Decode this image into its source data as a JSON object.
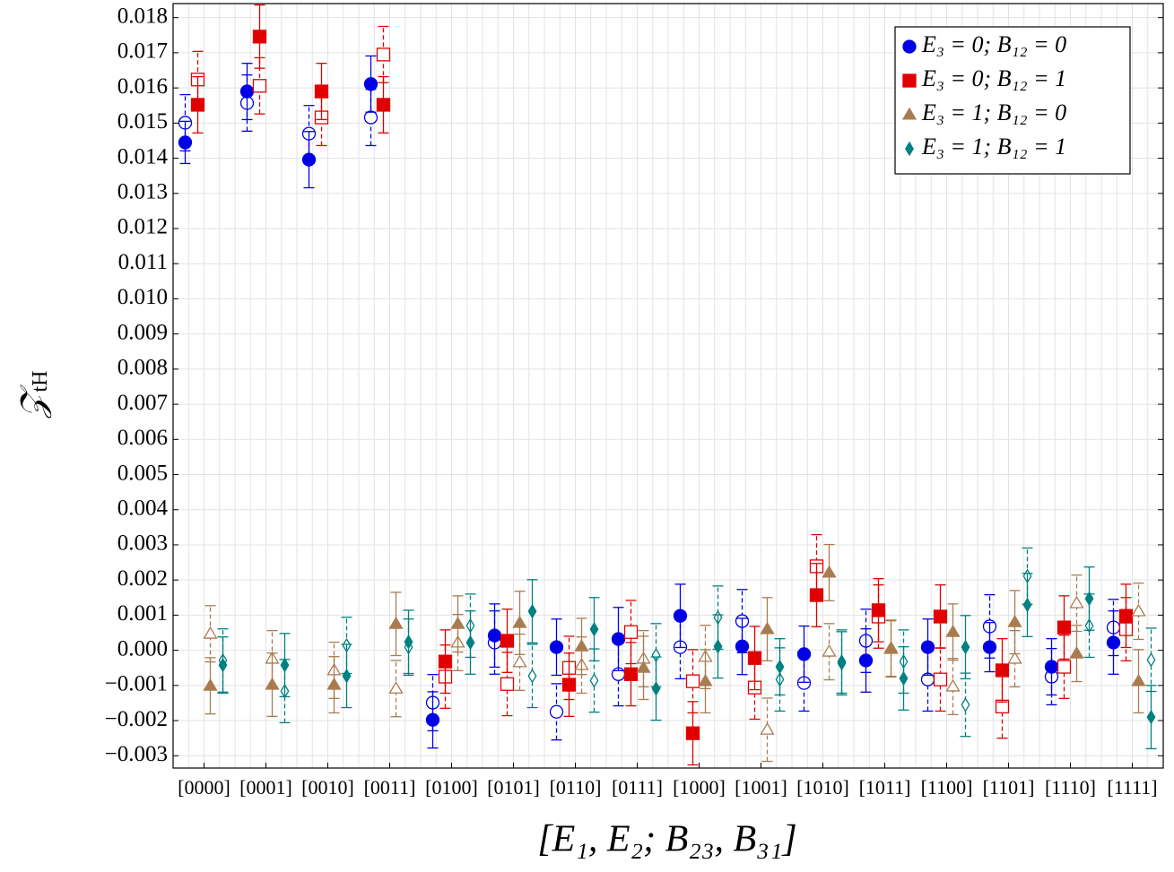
{
  "chart_data": {
    "type": "errorbar",
    "x_label": "[E₁, E₂; B₂₃, B₃₁]",
    "y_label": "𝒵",
    "y_label_sub": "tH",
    "categories": [
      "[0000]",
      "[0001]",
      "[0010]",
      "[0011]",
      "[0100]",
      "[0101]",
      "[0110]",
      "[0111]",
      "[1000]",
      "[1001]",
      "[1010]",
      "[1011]",
      "[1100]",
      "[1101]",
      "[1110]",
      "[1111]"
    ],
    "ylim": [
      -0.00335,
      0.0184
    ],
    "yticks": [
      {
        "value": -0.003,
        "label": "−0.003"
      },
      {
        "value": -0.002,
        "label": "−0.002"
      },
      {
        "value": -0.001,
        "label": "−0.001"
      },
      {
        "value": 0,
        "label": "0.000"
      },
      {
        "value": 0.001,
        "label": "0.001"
      },
      {
        "value": 0.002,
        "label": "0.002"
      },
      {
        "value": 0.003,
        "label": "0.003"
      },
      {
        "value": 0.004,
        "label": "0.004"
      },
      {
        "value": 0.005,
        "label": "0.005"
      },
      {
        "value": 0.006,
        "label": "0.006"
      },
      {
        "value": 0.007,
        "label": "0.007"
      },
      {
        "value": 0.008,
        "label": "0.008"
      },
      {
        "value": 0.009,
        "label": "0.009"
      },
      {
        "value": 0.01,
        "label": "0.010"
      },
      {
        "value": 0.011,
        "label": "0.011"
      },
      {
        "value": 0.012,
        "label": "0.012"
      },
      {
        "value": 0.013,
        "label": "0.013"
      },
      {
        "value": 0.014,
        "label": "0.014"
      },
      {
        "value": 0.015,
        "label": "0.015"
      },
      {
        "value": 0.016,
        "label": "0.016"
      },
      {
        "value": 0.017,
        "label": "0.017"
      },
      {
        "value": 0.018,
        "label": "0.018"
      }
    ],
    "grid": true,
    "legend": "upper right",
    "series": [
      {
        "name": "E₃ = 0; B₁₂ = 0",
        "color": "#0000e6",
        "marker": "circle",
        "values": [
          0.01445,
          0.0159,
          0.01396,
          0.01611,
          -0.00198,
          0.00042,
          9e-05,
          0.00032,
          0.00098,
          0.00011,
          -0.00011,
          -0.00029,
          9e-05,
          9e-05,
          -0.00047,
          0.00022
        ],
        "errors": [
          0.0006,
          0.0008,
          0.0008,
          0.0008,
          0.0008,
          0.0009,
          0.0008,
          0.0009,
          0.0009,
          0.0008,
          0.0008,
          0.0009,
          0.0008,
          0.0007,
          0.0008,
          0.0009
        ],
        "open_values": [
          0.01501,
          0.01557,
          0.0147,
          0.01516,
          -0.00149,
          0.00022,
          -0.00175,
          -0.00068,
          9e-05,
          0.00083,
          -0.00093,
          0.00027,
          -0.00083,
          0.00068,
          -0.00075,
          0.00065
        ],
        "open_errors": [
          0.0008,
          0.0008,
          0.0008,
          0.0008,
          0.0008,
          0.0009,
          0.0008,
          0.0009,
          0.0009,
          0.0009,
          0.0008,
          0.0009,
          0.0009,
          0.0009,
          0.0008,
          0.0008
        ]
      },
      {
        "name": "E₃ = 0; B₁₂ = 1",
        "color": "#e00000",
        "marker": "square",
        "values": [
          0.01552,
          0.01746,
          0.0159,
          0.01552,
          -0.00032,
          0.00027,
          -0.00098,
          -0.00068,
          -0.00236,
          -0.00022,
          0.00157,
          0.00114,
          0.00096,
          -0.00057,
          0.00065,
          0.00098
        ],
        "errors": [
          0.0008,
          0.0009,
          0.0008,
          0.0008,
          0.0009,
          0.0009,
          0.0009,
          0.0009,
          0.0009,
          0.0009,
          0.0009,
          0.0009,
          0.0009,
          0.0009,
          0.0009,
          0.0009
        ],
        "open_values": [
          0.01624,
          0.01606,
          0.01516,
          0.01695,
          -0.00075,
          -0.00096,
          -0.0005,
          0.00052,
          -0.00088,
          -0.00106,
          0.00239,
          0.00096,
          -0.00083,
          -0.0016,
          -0.00047,
          0.0006
        ],
        "open_errors": [
          0.0008,
          0.0008,
          0.0008,
          0.0008,
          0.0009,
          0.0009,
          0.0009,
          0.0009,
          0.0009,
          0.0009,
          0.0009,
          0.0009,
          0.0009,
          0.0009,
          0.0009,
          0.0009
        ]
      },
      {
        "name": "E₃ = 1; B₁₂ = 0",
        "color": "#a97c50",
        "marker": "triangle",
        "values": [
          -0.00101,
          -0.00098,
          -0.00098,
          0.00075,
          0.00075,
          0.00078,
          0.00011,
          -0.0005,
          -0.00088,
          0.0006,
          0.00221,
          6e-05,
          0.00052,
          0.0008,
          -9e-05,
          -0.00088
        ],
        "errors": [
          0.0008,
          0.0009,
          0.0008,
          0.0009,
          0.0008,
          0.0009,
          0.0008,
          0.0009,
          0.0009,
          0.0009,
          0.0008,
          0.0008,
          0.0008,
          0.0009,
          0.0008,
          0.0009
        ],
        "open_values": [
          0.00047,
          -0.00024,
          -0.00057,
          -0.00109,
          0.00022,
          -0.00034,
          -0.00042,
          -0.00024,
          -0.00019,
          -0.00226,
          -4e-05,
          4e-05,
          -0.00103,
          -0.00024,
          0.00134,
          0.00111
        ],
        "open_errors": [
          0.0008,
          0.0008,
          0.0008,
          0.0008,
          0.0008,
          0.0008,
          0.0008,
          0.0008,
          0.0009,
          0.0009,
          0.0008,
          0.0008,
          0.0008,
          0.0008,
          0.0008,
          0.0008
        ]
      },
      {
        "name": "E₃ = 1; B₁₂ = 1",
        "color": "#008080",
        "marker": "diamond",
        "values": [
          -0.00042,
          -0.00042,
          -0.00073,
          0.00024,
          0.00022,
          0.00111,
          0.0006,
          -0.00109,
          0.00011,
          -0.00047,
          -0.00037,
          -0.0008,
          9e-05,
          0.00129,
          0.00147,
          -0.0019
        ],
        "errors": [
          0.0008,
          0.0009,
          0.0009,
          0.0009,
          0.0009,
          0.0009,
          0.0009,
          0.0009,
          0.0009,
          0.0008,
          0.0009,
          0.0009,
          0.0009,
          0.0009,
          0.0009,
          0.0009
        ],
        "open_values": [
          -0.00029,
          -0.00116,
          0.00014,
          9e-05,
          0.0007,
          -0.00073,
          -0.00086,
          -0.00014,
          0.00093,
          -0.00083,
          -0.00032,
          -0.00032,
          -0.00155,
          0.00211,
          0.0007,
          -0.00027
        ],
        "open_errors": [
          0.0009,
          0.0009,
          0.0008,
          0.0008,
          0.0009,
          0.0009,
          0.0009,
          0.0009,
          0.0009,
          0.0009,
          0.0009,
          0.0009,
          0.0009,
          0.0008,
          0.0009,
          0.0009
        ]
      }
    ]
  }
}
